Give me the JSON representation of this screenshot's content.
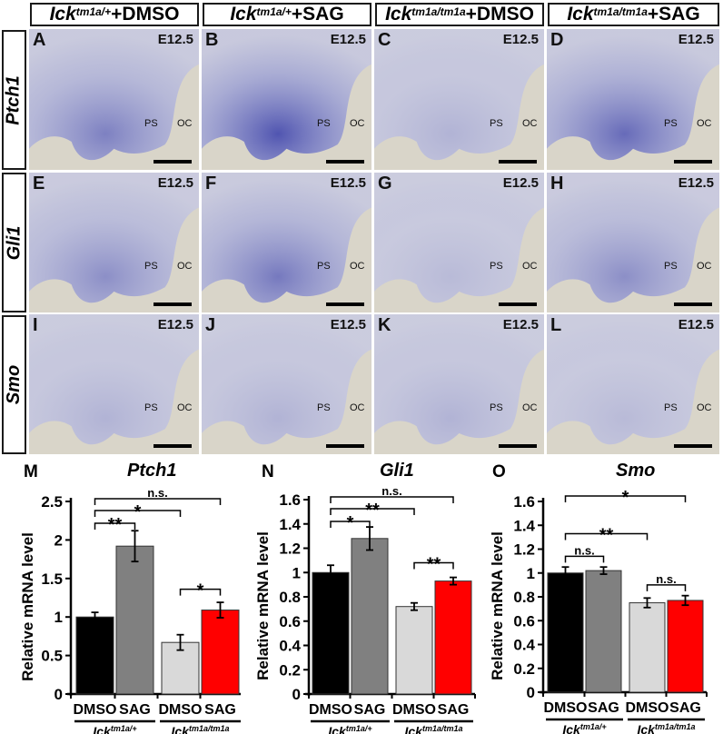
{
  "figure": {
    "column_headers": [
      {
        "gene": "Ick",
        "allele": "tm1a/+",
        "treatment": "+DMSO"
      },
      {
        "gene": "Ick",
        "allele": "tm1a/+",
        "treatment": "+SAG"
      },
      {
        "gene": "Ick",
        "allele": "tm1a/tm1a",
        "treatment": "+DMSO"
      },
      {
        "gene": "Ick",
        "allele": "tm1a/tm1a",
        "treatment": "+SAG"
      }
    ],
    "row_headers": [
      "Ptch1",
      "Gli1",
      "Smo"
    ],
    "panels": [
      {
        "letter": "A",
        "stage": "E12.5",
        "ps": "PS",
        "oc": "OC"
      },
      {
        "letter": "B",
        "stage": "E12.5",
        "ps": "PS",
        "oc": "OC"
      },
      {
        "letter": "C",
        "stage": "E12.5",
        "ps": "PS",
        "oc": "OC"
      },
      {
        "letter": "D",
        "stage": "E12.5",
        "ps": "PS",
        "oc": "OC"
      },
      {
        "letter": "E",
        "stage": "E12.5",
        "ps": "PS",
        "oc": "OC"
      },
      {
        "letter": "F",
        "stage": "E12.5",
        "ps": "PS",
        "oc": "OC"
      },
      {
        "letter": "G",
        "stage": "E12.5",
        "ps": "PS",
        "oc": "OC"
      },
      {
        "letter": "H",
        "stage": "E12.5",
        "ps": "PS",
        "oc": "OC"
      },
      {
        "letter": "I",
        "stage": "E12.5",
        "ps": "PS",
        "oc": "OC"
      },
      {
        "letter": "J",
        "stage": "E12.5",
        "ps": "PS",
        "oc": "OC"
      },
      {
        "letter": "K",
        "stage": "E12.5",
        "ps": "PS",
        "oc": "OC"
      },
      {
        "letter": "L",
        "stage": "E12.5",
        "ps": "PS",
        "oc": "OC"
      }
    ],
    "colors": {
      "dmso_het": "#000000",
      "sag_het": "#808080",
      "dmso_hom": "#d9d9d9",
      "sag_hom": "#ff0000",
      "stain": "#3a3fa8",
      "background": "#d8d4c8"
    }
  },
  "chart_data": [
    {
      "type": "bar",
      "panel": "M",
      "title": "Ptch1",
      "ylabel": "Relative mRNA level",
      "ylim": [
        0,
        2.5
      ],
      "yticks": [
        "0",
        "0.5",
        "1",
        "1.5",
        "2",
        "2.5"
      ],
      "ytick_values": [
        0,
        0.5,
        1,
        1.5,
        2,
        2.5
      ],
      "categories": [
        "DMSO",
        "SAG",
        "DMSO",
        "SAG"
      ],
      "groups": [
        {
          "label": "Ick",
          "sup": "tm1a/+"
        },
        {
          "label": "Ick",
          "sup": "tm1a/tm1a"
        }
      ],
      "values": [
        1.0,
        1.92,
        0.67,
        1.09
      ],
      "errors": [
        0.06,
        0.2,
        0.1,
        0.1
      ],
      "colors": [
        "#000000",
        "#808080",
        "#d9d9d9",
        "#ff0000"
      ],
      "significance": [
        {
          "from": 0,
          "to": 3,
          "label": "n.s."
        },
        {
          "from": 0,
          "to": 2,
          "label": "*"
        },
        {
          "from": 0,
          "to": 1,
          "label": "**"
        },
        {
          "from": 2,
          "to": 3,
          "label": "*"
        }
      ]
    },
    {
      "type": "bar",
      "panel": "N",
      "title": "Gli1",
      "ylabel": "Relative mRNA level",
      "ylim": [
        0,
        1.6
      ],
      "yticks": [
        "0",
        "0.2",
        "0.4",
        "0.6",
        "0.8",
        "1",
        "1.2",
        "1.4",
        "1.6"
      ],
      "ytick_values": [
        0,
        0.2,
        0.4,
        0.6,
        0.8,
        1,
        1.2,
        1.4,
        1.6
      ],
      "categories": [
        "DMSO",
        "SAG",
        "DMSO",
        "SAG"
      ],
      "groups": [
        {
          "label": "Ick",
          "sup": "tm1a/+"
        },
        {
          "label": "Ick",
          "sup": "tm1a/tm1a"
        }
      ],
      "values": [
        1.0,
        1.28,
        0.72,
        0.93
      ],
      "errors": [
        0.06,
        0.095,
        0.03,
        0.03
      ],
      "colors": [
        "#000000",
        "#808080",
        "#d9d9d9",
        "#ff0000"
      ],
      "significance": [
        {
          "from": 0,
          "to": 3,
          "label": "n.s."
        },
        {
          "from": 0,
          "to": 2,
          "label": "**"
        },
        {
          "from": 0,
          "to": 1,
          "label": "*"
        },
        {
          "from": 2,
          "to": 3,
          "label": "**"
        }
      ]
    },
    {
      "type": "bar",
      "panel": "O",
      "title": "Smo",
      "ylabel": "Relative mRNA level",
      "ylim": [
        0,
        1.6
      ],
      "yticks": [
        "0",
        "0.2",
        "0.4",
        "0.6",
        "0.8",
        "1",
        "1.2",
        "1.4",
        "1.6"
      ],
      "ytick_values": [
        0,
        0.2,
        0.4,
        0.6,
        0.8,
        1,
        1.2,
        1.4,
        1.6
      ],
      "categories": [
        "DMSO",
        "SAG",
        "DMSO",
        "SAG"
      ],
      "groups": [
        {
          "label": "Ick",
          "sup": "tm1a/+"
        },
        {
          "label": "Ick",
          "sup": "tm1a/tm1a"
        }
      ],
      "values": [
        1.0,
        1.02,
        0.75,
        0.77
      ],
      "errors": [
        0.05,
        0.03,
        0.04,
        0.04
      ],
      "colors": [
        "#000000",
        "#808080",
        "#d9d9d9",
        "#ff0000"
      ],
      "significance": [
        {
          "from": 0,
          "to": 3,
          "label": "*"
        },
        {
          "from": 0,
          "to": 2,
          "label": "**"
        },
        {
          "from": 0,
          "to": 1,
          "label": "n.s."
        },
        {
          "from": 2,
          "to": 3,
          "label": "n.s."
        }
      ]
    }
  ]
}
